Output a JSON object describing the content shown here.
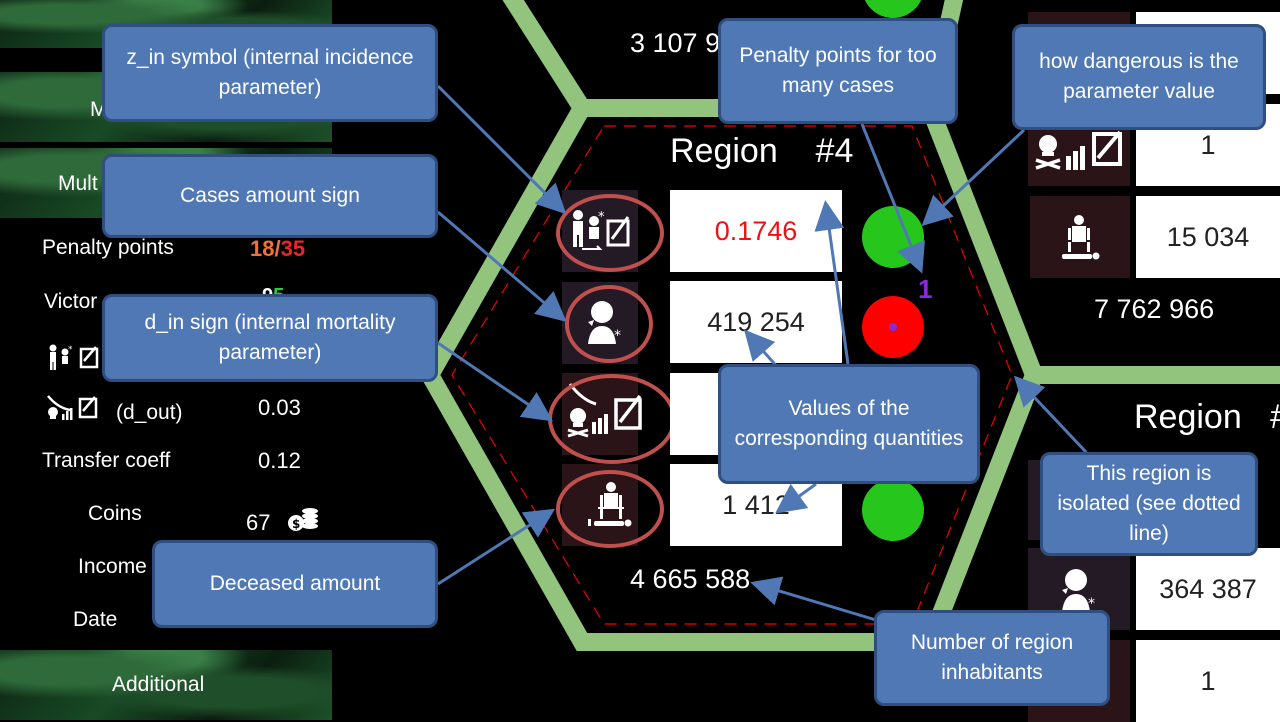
{
  "left_panel": {
    "row_m": "M",
    "row_mult": "Mult",
    "penalty_label": "Penalty points",
    "penalty_current": "18",
    "penalty_sep": "/",
    "penalty_max": "35",
    "victory_label": "Victor",
    "victory_value_a": "9",
    "victory_value_b": "5",
    "z_in_value": "",
    "d_out_label": "(d_out)",
    "d_out_value": "0.03",
    "transfer_label": "Transfer coeff",
    "transfer_value": "0.12",
    "coins_label": "Coins",
    "coins_value": "67",
    "income_label": "Income",
    "date_label": "Date",
    "additional_label": "Additional"
  },
  "region_main": {
    "title": "Region    #4",
    "z_in": "0.1746",
    "cases": "419 254",
    "deceased": "1 412",
    "penalty_points": "1",
    "inhabitants": "4 665 588",
    "dots": [
      "#27c61d",
      "#ff0000",
      "",
      "#27c61d"
    ]
  },
  "region_top": {
    "inhabitants": "3 107 9"
  },
  "region_right_top": {
    "d_in": "1",
    "deceased": "15 034",
    "inhabitants": "7 762 966"
  },
  "region_right_bottom": {
    "title": "Region   #",
    "cases": "364 387",
    "d_in": "1"
  },
  "callouts": {
    "z_in": "z_in symbol (internal incidence parameter)",
    "cases": "Cases amount sign",
    "d_in": "d_in sign (internal mortality parameter)",
    "deceased": "Deceased amount",
    "penalty": "Penalty points for too many cases",
    "danger": "how dangerous is the parameter value",
    "values": "Values of the corresponding quantities",
    "isolated": "This region is isolated (see dotted line)",
    "inhabitants": "Number of region inhabitants"
  },
  "colors": {
    "hex_border": "#93c47d",
    "callout_fill": "#4f78b5",
    "ring": "#c0504d",
    "penalty_current": "#f2703a",
    "penalty_max": "#e8262a",
    "green_dot": "#27c61d",
    "red_dot": "#ff0000"
  }
}
